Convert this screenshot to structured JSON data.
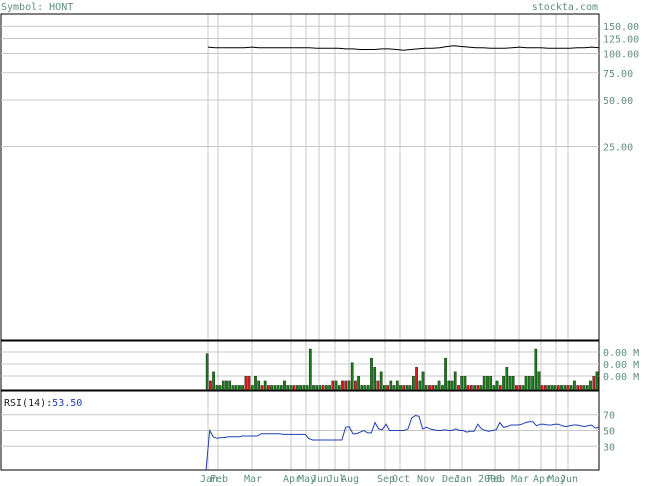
{
  "header": {
    "symbol_label": "Symbol: HONT",
    "site_label": "stockta.com"
  },
  "colors": {
    "label": "#5e9080",
    "grid": "#c8c8c8",
    "frame": "#000000",
    "price_line": "#000000",
    "volume_up": "#1b7a1b",
    "volume_down": "#d11d1d",
    "rsi_line": "#2040b0",
    "rsi_value": "#2040b0"
  },
  "chart_data": [
    {
      "type": "line",
      "panel": "price",
      "scale": "log",
      "y_tick_labels": [
        "150.00",
        "125.00",
        "100.00",
        "75.00",
        "50.00",
        "25.00"
      ],
      "y_ticks": [
        150,
        125,
        100,
        75,
        50,
        25
      ],
      "ylim": [
        1.4,
        180
      ],
      "x_tick_labels": [
        "Jan",
        "Feb",
        "Mar",
        "Apr",
        "May",
        "Jun",
        "Jul",
        "Aug",
        "Sep",
        "Oct",
        "Nov",
        "Dec",
        "Jan 2008",
        "Feb",
        "Mar",
        "Apr",
        "May",
        "Jun"
      ],
      "series": [
        {
          "values": [
            110,
            109,
            109,
            109,
            109,
            109,
            110,
            109,
            109,
            109,
            109,
            109,
            109,
            109,
            109,
            108,
            108,
            108,
            108,
            107,
            107,
            106,
            106,
            106,
            107,
            107,
            106,
            105,
            106,
            107,
            108,
            108,
            109,
            111,
            112,
            111,
            110,
            109,
            109,
            108,
            108,
            108,
            109,
            110,
            109,
            109,
            109,
            108,
            108,
            108,
            108,
            109,
            109,
            110,
            109
          ]
        }
      ]
    },
    {
      "type": "bar",
      "panel": "volume",
      "y_tick_labels": [
        "0.00 M",
        "0.00 M",
        "0.00 M"
      ],
      "values": [
        8,
        2,
        4,
        1,
        1,
        2,
        2,
        2,
        1,
        1,
        1,
        1,
        3,
        3,
        1,
        3,
        2,
        1,
        2,
        1,
        1,
        1,
        1,
        1,
        2,
        1,
        1,
        1,
        1,
        1,
        1,
        1,
        9,
        1,
        1,
        1,
        1,
        1,
        1,
        2,
        2,
        1,
        2,
        2,
        2,
        6,
        2,
        3,
        1,
        1,
        1,
        7,
        5,
        2,
        4,
        1,
        1,
        2,
        1,
        2,
        1,
        1,
        1,
        1,
        3,
        5,
        2,
        4,
        1,
        1,
        1,
        1,
        2,
        1,
        7,
        2,
        2,
        4,
        1,
        3,
        3,
        1,
        1,
        1,
        1,
        1,
        3,
        3,
        3,
        1,
        2,
        1,
        3,
        5,
        3,
        3,
        1,
        1,
        1,
        3,
        3,
        3,
        9,
        4,
        1,
        1,
        1,
        1,
        1,
        1,
        1,
        1,
        1,
        1,
        2,
        1,
        1,
        1,
        1,
        2,
        3,
        4
      ],
      "colors_key": [
        "g",
        "r",
        "g",
        "g",
        "g",
        "g",
        "g",
        "g",
        "g",
        "g",
        "g",
        "g",
        "r",
        "r",
        "g",
        "g",
        "g",
        "r",
        "g",
        "r",
        "g",
        "g",
        "g",
        "g",
        "g",
        "g",
        "g",
        "r",
        "g",
        "g",
        "g",
        "g",
        "g",
        "g",
        "g",
        "g",
        "r",
        "g",
        "g",
        "r",
        "g",
        "g",
        "r",
        "r",
        "g",
        "g",
        "r",
        "g",
        "g",
        "g",
        "g",
        "g",
        "g",
        "r",
        "g",
        "g",
        "r",
        "g",
        "g",
        "g",
        "g",
        "r",
        "g",
        "g",
        "g",
        "r",
        "g",
        "g",
        "g",
        "r",
        "r",
        "g",
        "g",
        "g",
        "g",
        "g",
        "g",
        "g",
        "r",
        "g",
        "g",
        "r",
        "r",
        "g",
        "r",
        "g",
        "g",
        "g",
        "g",
        "g",
        "g",
        "r",
        "g",
        "g",
        "g",
        "g",
        "r",
        "r",
        "g",
        "g",
        "g",
        "g",
        "g",
        "g",
        "r",
        "r",
        "g",
        "g",
        "g",
        "r",
        "g",
        "g",
        "r",
        "g",
        "g",
        "r",
        "r",
        "g",
        "g",
        "g",
        "r",
        "g"
      ]
    },
    {
      "type": "line",
      "panel": "rsi",
      "label": "RSI(14):",
      "value_label": "53.50",
      "y_tick_labels": [
        "70",
        "50",
        "30"
      ],
      "y_ticks": [
        70,
        50,
        30
      ],
      "ylim": [
        0,
        100
      ],
      "series": [
        {
          "values": [
            0,
            50,
            42,
            40,
            41,
            41,
            42,
            42,
            42,
            42,
            43,
            43,
            43,
            43,
            43,
            46,
            46,
            46,
            46,
            46,
            46,
            45,
            45,
            45,
            45,
            45,
            45,
            45,
            40,
            38,
            38,
            38,
            38,
            38,
            38,
            38,
            38,
            38,
            54,
            55,
            46,
            46,
            48,
            50,
            47,
            47,
            60,
            52,
            51,
            58,
            50,
            50,
            50,
            50,
            50,
            52,
            66,
            69,
            68,
            52,
            54,
            52,
            51,
            50,
            50,
            51,
            50,
            50,
            52,
            50,
            50,
            48,
            49,
            49,
            58,
            52,
            50,
            49,
            50,
            51,
            60,
            54,
            55,
            57,
            57,
            57,
            58,
            60,
            61,
            61,
            56,
            58,
            58,
            57,
            57,
            58,
            58,
            56,
            55,
            56,
            57,
            57,
            56,
            55,
            56,
            57,
            53,
            54
          ]
        }
      ]
    }
  ]
}
